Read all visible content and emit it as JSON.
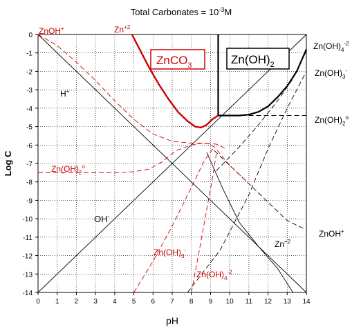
{
  "chart_data": {
    "type": "line",
    "title": {
      "text": "Total Carbonates = 10",
      "sup": "-3",
      "tail": "M"
    },
    "xlabel": "pH",
    "ylabel": "Log C",
    "xlim": [
      0,
      14
    ],
    "ylim": [
      -14,
      0
    ],
    "xticks": [
      "0",
      "1",
      "2",
      "3",
      "4",
      "5",
      "6",
      "7",
      "8",
      "9",
      "10",
      "11",
      "12",
      "13",
      "14"
    ],
    "yticks": [
      "0",
      "-1",
      "-2",
      "-3",
      "-4",
      "-5",
      "-6",
      "-7",
      "-8",
      "-9",
      "-10",
      "-11",
      "-12",
      "-13",
      "-14"
    ],
    "grid": true,
    "colors": {
      "solid": "#000000",
      "zn_species": "#cc0000",
      "grid": "#000000"
    },
    "series": [
      {
        "style": "black-solid",
        "points": [
          [
            0,
            0
          ],
          [
            14,
            -14
          ]
        ]
      },
      {
        "style": "black-solid",
        "points": [
          [
            0,
            -14
          ],
          [
            14,
            0
          ]
        ]
      },
      {
        "style": "red-solid-bold",
        "points": [
          [
            4.9,
            0
          ],
          [
            5.3,
            -0.8
          ],
          [
            5.8,
            -1.8
          ],
          [
            6.3,
            -2.7
          ],
          [
            6.8,
            -3.5
          ],
          [
            7.3,
            -4.2
          ],
          [
            7.8,
            -4.7
          ],
          [
            8.2,
            -5
          ],
          [
            8.5,
            -5.05
          ],
          [
            8.8,
            -4.9
          ],
          [
            9.1,
            -4.6
          ],
          [
            9.4,
            -4.4
          ]
        ]
      },
      {
        "style": "black-solid-bold",
        "points": [
          [
            9.4,
            -4.4
          ],
          [
            10.5,
            -4.4
          ],
          [
            11,
            -4.35
          ],
          [
            11.5,
            -4.2
          ],
          [
            12,
            -3.9
          ],
          [
            12.5,
            -3.4
          ],
          [
            13,
            -2.8
          ],
          [
            13.5,
            -2
          ],
          [
            14,
            -0.8
          ]
        ]
      },
      {
        "style": "black-solid-bold",
        "points": [
          [
            9.4,
            0
          ],
          [
            9.4,
            -4.4
          ]
        ]
      },
      {
        "style": "black-dashed",
        "points": [
          [
            9.4,
            -4.4
          ],
          [
            14,
            -4.4
          ]
        ]
      },
      {
        "style": "black-dashed",
        "points": [
          [
            7.8,
            -14
          ],
          [
            9.5,
            -11.7
          ],
          [
            11,
            -8.7
          ],
          [
            12,
            -6.2
          ],
          [
            13,
            -4
          ],
          [
            14,
            -2
          ]
        ]
      },
      {
        "style": "black-dashed",
        "points": [
          [
            9.3,
            -7.4
          ],
          [
            10.5,
            -6.1
          ],
          [
            11.5,
            -4.9
          ],
          [
            12.5,
            -3.6
          ],
          [
            13.3,
            -2.4
          ],
          [
            14,
            -0.9
          ]
        ]
      },
      {
        "style": "black-dashed",
        "points": [
          [
            9.2,
            -6.3
          ],
          [
            10,
            -7.1
          ],
          [
            11,
            -8.1
          ],
          [
            12,
            -9.1
          ],
          [
            13,
            -10.1
          ],
          [
            14,
            -10.6
          ]
        ]
      },
      {
        "style": "black-solid",
        "points": [
          [
            8.8,
            -6.4
          ],
          [
            9.7,
            -8.5
          ],
          [
            10.5,
            -10.2
          ],
          [
            11.5,
            -11.5
          ],
          [
            12.5,
            -12.7
          ],
          [
            13.3,
            -14
          ]
        ]
      },
      {
        "style": "red-dashed",
        "points": [
          [
            0,
            0
          ],
          [
            1,
            -0.6
          ],
          [
            2,
            -1.5
          ],
          [
            3,
            -2.5
          ],
          [
            4,
            -3.6
          ],
          [
            5,
            -4.6
          ],
          [
            6,
            -5.4
          ],
          [
            7,
            -5.8
          ],
          [
            8,
            -5.9
          ],
          [
            8.8,
            -5.9
          ],
          [
            9.2,
            -6.1
          ],
          [
            10,
            -7.1
          ],
          [
            11,
            -8.1
          ]
        ]
      },
      {
        "style": "red-dashed",
        "points": [
          [
            0,
            -7.5
          ],
          [
            4,
            -7.5
          ],
          [
            5,
            -7.45
          ],
          [
            5.8,
            -7.3
          ],
          [
            6.5,
            -6.9
          ],
          [
            7.2,
            -6.3
          ],
          [
            8,
            -6
          ],
          [
            8.6,
            -5.9
          ],
          [
            9.3,
            -5.95
          ],
          [
            9.8,
            -6.2
          ]
        ]
      },
      {
        "style": "red-dashed",
        "points": [
          [
            5,
            -14
          ],
          [
            6,
            -12.3
          ],
          [
            7,
            -10.4
          ],
          [
            8,
            -8.3
          ],
          [
            8.7,
            -6.8
          ],
          [
            9.2,
            -6.1
          ]
        ]
      },
      {
        "style": "red-dashed",
        "points": [
          [
            8,
            -14
          ],
          [
            8.4,
            -11.8
          ],
          [
            8.8,
            -9.5
          ],
          [
            9.1,
            -7.8
          ],
          [
            9.3,
            -6.5
          ]
        ]
      }
    ],
    "annotations": {
      "znoh_plus_red": "ZnOH",
      "zn2_red": "Zn",
      "znco3": {
        "base": "ZnCO",
        "sub": "3"
      },
      "znoh2_box": {
        "base": "Zn(OH)",
        "sub": "2"
      },
      "hplus": "H",
      "znoh2_aq_red": {
        "base": "Zn(OH)",
        "sub": "2",
        "sup": "o"
      },
      "ohminus": "OH",
      "znoh3_red": {
        "base": "Zn(OH)",
        "sub": "3",
        "sup": "-"
      },
      "znoh4_red": {
        "base": "Zn(OH)",
        "sub": "4",
        "sup": "-2"
      },
      "zn2_black": "Zn",
      "right_znoh4": {
        "base": "Zn(OH)",
        "sub": "4",
        "sup": "-2"
      },
      "right_znoh3": {
        "base": "Zn(OH)",
        "sub": "3",
        "sup": "-"
      },
      "right_znoh2": {
        "base": "Zn(OH)",
        "sub": "2",
        "sup": "o"
      },
      "right_znoh_plus": "ZnOH"
    },
    "legend": "none"
  }
}
